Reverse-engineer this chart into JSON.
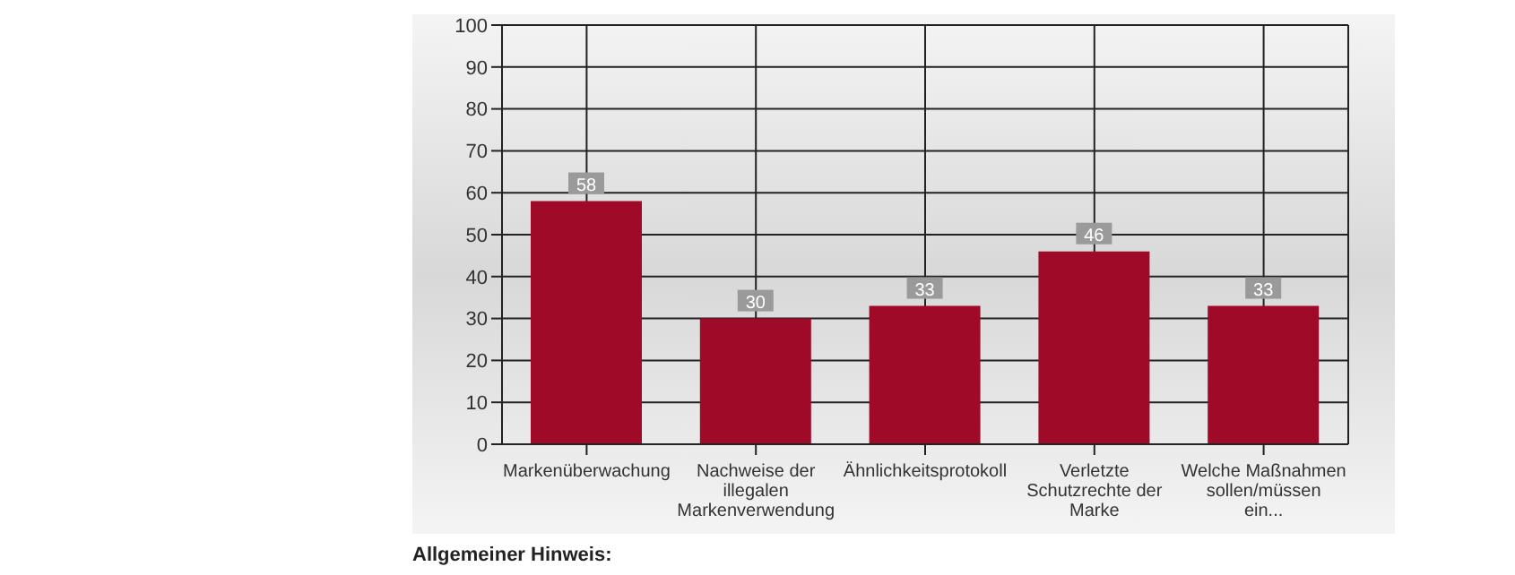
{
  "chart_data": {
    "type": "bar",
    "categories": [
      "Markenüberwachung",
      "Nachweise der illegalen Markenverwendung",
      "Ähnlichkeitsprotokoll",
      "Verletzte Schutzrechte der Marke",
      "Welche Maßnahmen sollen/müssen ein..."
    ],
    "values": [
      58,
      30,
      33,
      46,
      33
    ],
    "color": "#9e0a28",
    "ylim": [
      0,
      100
    ],
    "yticks": [
      0,
      10,
      20,
      30,
      40,
      50,
      60,
      70,
      80,
      90,
      100
    ],
    "grid": true,
    "data_labels": true,
    "annotations": [
      "Allgemeiner Hinweis:"
    ]
  }
}
